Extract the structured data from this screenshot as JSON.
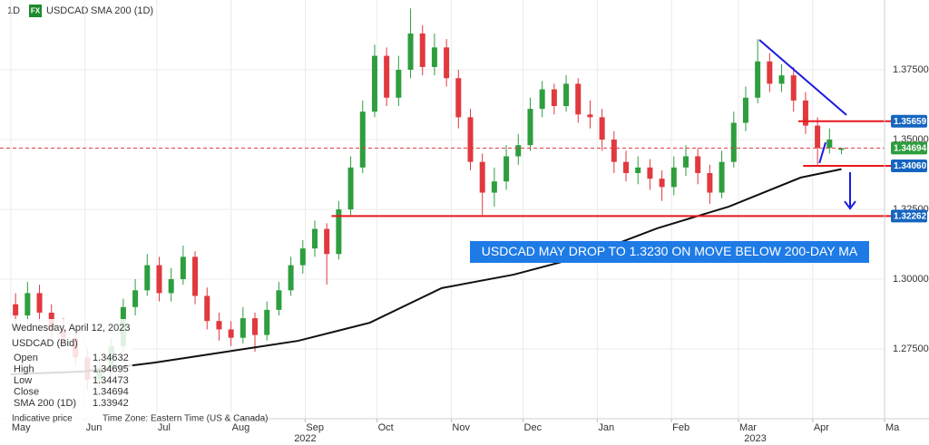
{
  "chart_data": {
    "type": "candlestick",
    "interval": "1D",
    "badge": "FX",
    "symbol": "USDCAD",
    "indicator": "SMA 200 (1D)",
    "xlim": [
      -4.5,
      365
    ],
    "ylim": [
      1.25,
      1.4
    ],
    "xticks": [
      {
        "value": 0,
        "label": "May"
      },
      {
        "value": 31,
        "label": "Jun"
      },
      {
        "value": 61,
        "label": "Jul"
      },
      {
        "value": 92,
        "label": "Aug"
      },
      {
        "value": 123,
        "label": "Sep"
      },
      {
        "value": 153,
        "label": "Oct"
      },
      {
        "value": 184,
        "label": "Nov"
      },
      {
        "value": 214,
        "label": "Dec"
      },
      {
        "value": 245,
        "label": "Jan"
      },
      {
        "value": 276,
        "label": "Feb"
      },
      {
        "value": 304,
        "label": "Mar"
      },
      {
        "value": 335,
        "label": "Apr"
      },
      {
        "value": 365,
        "label": "Ma"
      }
    ],
    "years": [
      {
        "value": 123,
        "label": "2022"
      },
      {
        "value": 311,
        "label": "2023"
      }
    ],
    "yticks": [
      {
        "value": 1.275,
        "label": "1.27500"
      },
      {
        "value": 1.3,
        "label": "1.30000"
      },
      {
        "value": 1.325,
        "label": "1.32500"
      },
      {
        "value": 1.35,
        "label": "1.35000"
      },
      {
        "value": 1.375,
        "label": "1.37500"
      }
    ],
    "grid": true,
    "up_color": "#2e9e3e",
    "down_color": "#e0393e",
    "candles": {
      "x": [
        2,
        7,
        12,
        17,
        22,
        27,
        32,
        37,
        42,
        47,
        52,
        57,
        62,
        67,
        72,
        77,
        82,
        87,
        92,
        97,
        102,
        107,
        112,
        117,
        122,
        127,
        132,
        137,
        142,
        147,
        152,
        157,
        162,
        167,
        172,
        177,
        182,
        187,
        192,
        197,
        202,
        207,
        212,
        217,
        222,
        227,
        232,
        237,
        242,
        247,
        252,
        257,
        262,
        267,
        272,
        277,
        282,
        287,
        292,
        297,
        302,
        307,
        312,
        317,
        322,
        327,
        332,
        337,
        342,
        347
      ],
      "open": [
        1.291,
        1.287,
        1.295,
        1.288,
        1.282,
        1.279,
        1.272,
        1.264,
        1.268,
        1.276,
        1.29,
        1.296,
        1.305,
        1.295,
        1.3,
        1.308,
        1.294,
        1.285,
        1.282,
        1.279,
        1.286,
        1.28,
        1.289,
        1.296,
        1.305,
        1.311,
        1.318,
        1.309,
        1.325,
        1.34,
        1.36,
        1.38,
        1.365,
        1.375,
        1.388,
        1.376,
        1.383,
        1.372,
        1.358,
        1.342,
        1.331,
        1.335,
        1.344,
        1.348,
        1.361,
        1.368,
        1.362,
        1.37,
        1.359,
        1.358,
        1.35,
        1.342,
        1.338,
        1.34,
        1.336,
        1.333,
        1.34,
        1.344,
        1.338,
        1.331,
        1.342,
        1.356,
        1.365,
        1.378,
        1.37,
        1.373,
        1.364,
        1.355,
        1.347,
        1.34632
      ],
      "high": [
        1.295,
        1.299,
        1.298,
        1.291,
        1.286,
        1.282,
        1.275,
        1.272,
        1.279,
        1.293,
        1.3,
        1.309,
        1.308,
        1.304,
        1.312,
        1.31,
        1.297,
        1.288,
        1.285,
        1.29,
        1.288,
        1.292,
        1.299,
        1.308,
        1.314,
        1.321,
        1.32,
        1.328,
        1.344,
        1.364,
        1.384,
        1.383,
        1.38,
        1.397,
        1.391,
        1.388,
        1.386,
        1.375,
        1.361,
        1.345,
        1.34,
        1.348,
        1.352,
        1.365,
        1.371,
        1.37,
        1.373,
        1.372,
        1.364,
        1.361,
        1.353,
        1.346,
        1.344,
        1.343,
        1.339,
        1.344,
        1.348,
        1.347,
        1.341,
        1.346,
        1.36,
        1.369,
        1.386,
        1.381,
        1.377,
        1.376,
        1.367,
        1.358,
        1.354,
        1.34695
      ],
      "low": [
        1.283,
        1.284,
        1.285,
        1.279,
        1.276,
        1.269,
        1.26,
        1.261,
        1.265,
        1.274,
        1.287,
        1.294,
        1.292,
        1.292,
        1.298,
        1.291,
        1.282,
        1.278,
        1.276,
        1.277,
        1.274,
        1.278,
        1.287,
        1.294,
        1.302,
        1.308,
        1.298,
        1.307,
        1.323,
        1.338,
        1.358,
        1.362,
        1.362,
        1.372,
        1.373,
        1.373,
        1.369,
        1.354,
        1.339,
        1.323,
        1.326,
        1.332,
        1.341,
        1.346,
        1.358,
        1.359,
        1.36,
        1.356,
        1.354,
        1.346,
        1.338,
        1.335,
        1.334,
        1.332,
        1.328,
        1.33,
        1.337,
        1.334,
        1.327,
        1.329,
        1.34,
        1.353,
        1.363,
        1.367,
        1.367,
        1.36,
        1.352,
        1.341,
        1.345,
        1.34473
      ],
      "close": [
        1.287,
        1.295,
        1.288,
        1.282,
        1.279,
        1.272,
        1.264,
        1.268,
        1.276,
        1.29,
        1.296,
        1.305,
        1.295,
        1.3,
        1.308,
        1.294,
        1.285,
        1.282,
        1.279,
        1.286,
        1.28,
        1.289,
        1.296,
        1.305,
        1.311,
        1.318,
        1.309,
        1.325,
        1.34,
        1.36,
        1.38,
        1.365,
        1.375,
        1.388,
        1.376,
        1.383,
        1.372,
        1.358,
        1.342,
        1.331,
        1.335,
        1.344,
        1.348,
        1.361,
        1.368,
        1.362,
        1.37,
        1.359,
        1.358,
        1.35,
        1.342,
        1.338,
        1.34,
        1.336,
        1.333,
        1.34,
        1.344,
        1.338,
        1.331,
        1.342,
        1.356,
        1.365,
        1.378,
        1.37,
        1.373,
        1.364,
        1.355,
        1.347,
        1.35,
        1.34694
      ]
    },
    "sma": {
      "name": "SMA 200 (1D)",
      "color": "#111111",
      "x": [
        0,
        30,
        60,
        90,
        120,
        150,
        180,
        210,
        240,
        270,
        300,
        330,
        347
      ],
      "values": [
        1.2659,
        1.2669,
        1.2701,
        1.274,
        1.2779,
        1.2844,
        1.2968,
        1.3016,
        1.3084,
        1.3182,
        1.326,
        1.3364,
        1.33942
      ]
    },
    "current_price": {
      "value": 1.34694,
      "label": "1.34694",
      "color": "#e0393e"
    },
    "levels": [
      {
        "value": 1.35659,
        "label": "1.35659",
        "from": 329
      },
      {
        "value": 1.3406,
        "label": "1.34060",
        "from": 331
      },
      {
        "value": 1.32262,
        "label": "1.32262",
        "from": 134
      }
    ],
    "level_color": "#e8161b",
    "trendline": {
      "x": [
        312.7,
        349.1
      ],
      "values": [
        1.3857,
        1.3588
      ],
      "color": "#1a1adf"
    },
    "swing": {
      "x": [
        337.8,
        340.4
      ],
      "values": [
        1.3416,
        1.349
      ],
      "color": "#1a1adf"
    },
    "arrow": {
      "x": 350.6,
      "values": [
        1.3383,
        1.3253
      ],
      "color": "#1a1adf"
    },
    "annotation": "USDCAD MAY DROP TO 1.3230 ON MOVE BELOW 200-DAY MA",
    "info": {
      "date": "Wednesday, April 12, 2023",
      "instrument": "USDCAD (Bid)",
      "rows": [
        [
          "Open",
          1.34632
        ],
        [
          "High",
          1.34695
        ],
        [
          "Low",
          1.34473
        ],
        [
          "Close",
          1.34694
        ],
        [
          "SMA 200 (1D)",
          1.33942
        ]
      ],
      "note": "Indicative price",
      "timezone": "Time Zone: Eastern Time (US & Canada)"
    }
  }
}
